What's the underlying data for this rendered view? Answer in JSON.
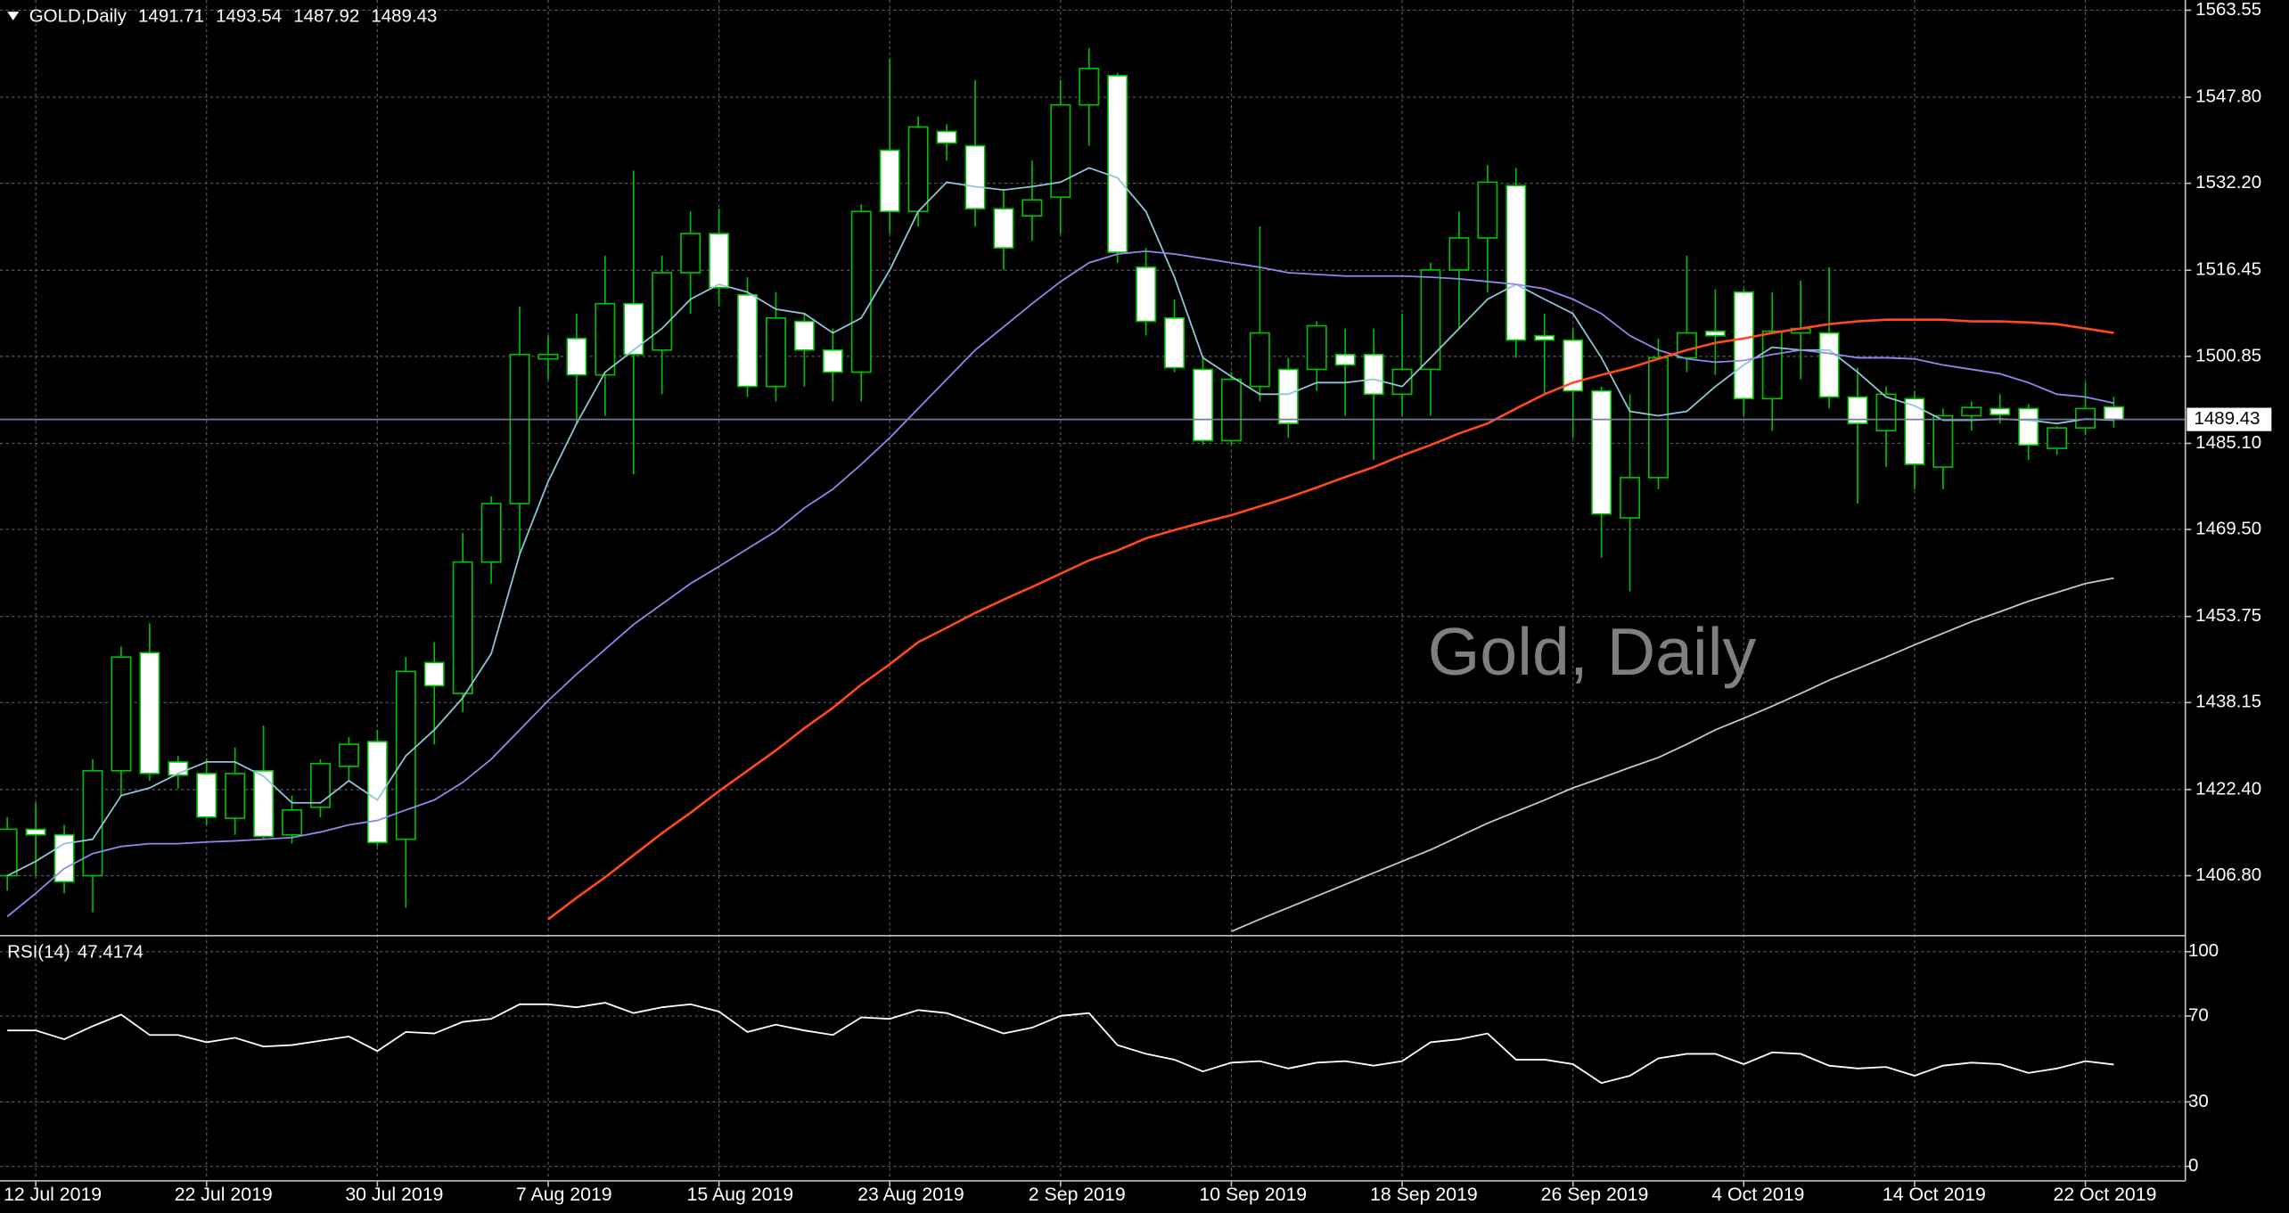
{
  "chart_data": {
    "type": "candlestick",
    "symbol": "GOLD,Daily",
    "watermark": "Gold, Daily",
    "categories": [
      null,
      "12 Jul 2019",
      null,
      null,
      null,
      null,
      null,
      "22 Jul 2019",
      null,
      null,
      null,
      null,
      null,
      "30 Jul 2019",
      null,
      null,
      null,
      null,
      null,
      "7 Aug 2019",
      null,
      null,
      null,
      null,
      null,
      "15 Aug 2019",
      null,
      null,
      null,
      null,
      null,
      "23 Aug 2019",
      null,
      null,
      null,
      null,
      null,
      "2 Sep 2019",
      null,
      null,
      null,
      null,
      null,
      "10 Sep 2019",
      null,
      null,
      null,
      null,
      null,
      "18 Sep 2019",
      null,
      null,
      null,
      null,
      null,
      "26 Sep 2019",
      null,
      null,
      null,
      null,
      null,
      "4 Oct 2019",
      null,
      null,
      null,
      null,
      null,
      "14 Oct 2019",
      null,
      null,
      null,
      null,
      null,
      "22 Oct 2019",
      null
    ],
    "open": [
      1406.8,
      1415.2,
      1414.2,
      1406.8,
      1425.8,
      1447.2,
      1427.4,
      1425.3,
      1417.2,
      1425.8,
      1414.2,
      1419.2,
      1426.6,
      1431.1,
      1413.4,
      1445.4,
      1439.8,
      1463.6,
      1474.2,
      1500.4,
      1504.1,
      1497.5,
      1510.4,
      1502.0,
      1516.0,
      1523.1,
      1512.0,
      1495.4,
      1507.2,
      1502.0,
      1498.0,
      1538.2,
      1527.1,
      1541.6,
      1539.0,
      1527.6,
      1526.3,
      1529.7,
      1546.4,
      1551.7,
      1517.0,
      1507.8,
      1498.5,
      1485.6,
      1495.4,
      1498.5,
      1498.5,
      1501.2,
      1501.2,
      1494.0,
      1498.5,
      1516.5,
      1522.3,
      1531.8,
      1504.6,
      1503.8,
      1494.6,
      1471.6,
      1478.9,
      1500.6,
      1505.4,
      1512.5,
      1493.2,
      1505.1,
      1505.1,
      1493.5,
      1487.4,
      1493.2,
      1480.8,
      1490.1,
      1491.4,
      1491.4,
      1484.2,
      1487.9,
      1491.71
    ],
    "high": [
      1417.4,
      1420.0,
      1416.0,
      1427.9,
      1448.3,
      1452.5,
      1428.5,
      1428.0,
      1430.0,
      1434.0,
      1421.3,
      1427.9,
      1431.9,
      1433.2,
      1446.4,
      1449.1,
      1468.9,
      1475.5,
      1509.9,
      1504.6,
      1508.6,
      1519.1,
      1534.5,
      1519.1,
      1527.1,
      1527.6,
      1515.2,
      1512.5,
      1508.6,
      1505.9,
      1528.4,
      1554.8,
      1544.3,
      1542.9,
      1550.9,
      1531.0,
      1536.3,
      1550.9,
      1556.7,
      1552.2,
      1520.5,
      1511.2,
      1500.6,
      1498.0,
      1524.4,
      1500.6,
      1507.2,
      1505.9,
      1505.9,
      1508.6,
      1517.8,
      1527.1,
      1535.5,
      1535.0,
      1508.6,
      1505.9,
      1495.4,
      1494.0,
      1504.1,
      1519.1,
      1513.0,
      1513.0,
      1512.5,
      1514.6,
      1517.0,
      1498.8,
      1495.4,
      1494.6,
      1491.4,
      1492.7,
      1494.0,
      1492.2,
      1488.2,
      1496.1,
      1493.54
    ],
    "low": [
      1404.1,
      1406.8,
      1403.6,
      1400.2,
      1421.3,
      1424.0,
      1422.6,
      1416.0,
      1414.2,
      1413.4,
      1412.6,
      1417.4,
      1424.0,
      1412.1,
      1401.0,
      1430.6,
      1436.4,
      1459.7,
      1464.9,
      1496.7,
      1488.7,
      1490.1,
      1479.5,
      1494.0,
      1508.6,
      1509.9,
      1493.5,
      1492.7,
      1495.4,
      1492.7,
      1492.7,
      1523.1,
      1524.4,
      1536.3,
      1524.4,
      1516.5,
      1521.8,
      1523.1,
      1539.0,
      1517.8,
      1504.6,
      1498.0,
      1484.8,
      1484.8,
      1492.7,
      1486.1,
      1494.6,
      1490.1,
      1482.1,
      1490.1,
      1490.1,
      1505.9,
      1512.5,
      1500.6,
      1494.0,
      1486.1,
      1464.4,
      1458.3,
      1476.8,
      1498.0,
      1497.5,
      1490.1,
      1487.4,
      1496.7,
      1491.4,
      1474.2,
      1480.8,
      1476.8,
      1476.8,
      1487.4,
      1488.7,
      1482.1,
      1483.0,
      1486.6,
      1487.92
    ],
    "close": [
      1415.2,
      1414.2,
      1405.7,
      1425.8,
      1446.4,
      1425.3,
      1425.0,
      1417.4,
      1425.3,
      1413.9,
      1418.7,
      1427.1,
      1430.6,
      1412.8,
      1443.8,
      1441.2,
      1463.6,
      1474.2,
      1501.2,
      1501.2,
      1497.5,
      1510.4,
      1501.2,
      1516.0,
      1523.1,
      1513.3,
      1495.4,
      1507.8,
      1502.0,
      1498.0,
      1527.1,
      1527.1,
      1542.4,
      1539.5,
      1527.6,
      1520.5,
      1529.2,
      1546.4,
      1553.0,
      1519.7,
      1507.2,
      1498.8,
      1485.6,
      1496.7,
      1505.1,
      1488.7,
      1506.4,
      1499.3,
      1494.0,
      1498.5,
      1516.5,
      1522.3,
      1532.4,
      1503.8,
      1503.8,
      1494.6,
      1472.3,
      1478.9,
      1500.6,
      1505.1,
      1504.6,
      1493.2,
      1505.4,
      1505.9,
      1493.5,
      1488.7,
      1494.0,
      1481.3,
      1490.1,
      1491.6,
      1490.3,
      1484.8,
      1487.9,
      1491.4,
      1489.43
    ],
    "up_color": "#000000",
    "down_color": "#ffffff",
    "wick_color": "#00c000",
    "price_line_color": "#6f7f9c",
    "overlays": [
      {
        "color": "#8fc4d8",
        "values": [
          1406.8,
          1409.4,
          1412.6,
          1413.4,
          1421.3,
          1422.7,
          1425.3,
          1427.4,
          1427.4,
          1424.8,
          1420.0,
          1420.0,
          1424.0,
          1420.5,
          1428.5,
          1433.2,
          1439.0,
          1447.0,
          1465.0,
          1478.2,
          1488.7,
          1498.0,
          1502.0,
          1505.9,
          1511.2,
          1513.9,
          1512.5,
          1509.4,
          1508.6,
          1505.1,
          1507.8,
          1516.5,
          1527.1,
          1532.4,
          1531.6,
          1531.0,
          1531.6,
          1532.4,
          1535.0,
          1533.2,
          1527.1,
          1515.2,
          1500.6,
          1497.2,
          1494.0,
          1494.0,
          1496.1,
          1496.1,
          1496.7,
          1495.4,
          1500.6,
          1505.9,
          1511.2,
          1513.9,
          1511.2,
          1508.6,
          1500.6,
          1490.9,
          1490.1,
          1490.9,
          1495.4,
          1499.3,
          1502.5,
          1502.0,
          1502.0,
          1498.0,
          1493.5,
          1491.9,
          1489.3,
          1489.3,
          1489.5,
          1489.3,
          1488.7,
          1489.5,
          1489.3
        ]
      },
      {
        "color": "#9585ee",
        "values": [
          1399.4,
          1403.6,
          1408.1,
          1410.8,
          1412.1,
          1412.6,
          1412.6,
          1412.9,
          1413.1,
          1413.4,
          1413.7,
          1414.7,
          1416.0,
          1416.8,
          1418.7,
          1420.5,
          1423.7,
          1427.9,
          1433.2,
          1438.5,
          1443.3,
          1447.8,
          1452.3,
          1456.0,
          1459.7,
          1462.8,
          1466.0,
          1469.2,
          1473.4,
          1476.8,
          1481.3,
          1486.1,
          1491.4,
          1496.7,
          1502.0,
          1506.2,
          1510.4,
          1514.4,
          1517.8,
          1519.4,
          1519.9,
          1519.4,
          1518.6,
          1517.8,
          1517.0,
          1516.0,
          1515.7,
          1515.4,
          1515.4,
          1515.4,
          1515.2,
          1514.9,
          1514.4,
          1513.9,
          1513.1,
          1511.2,
          1508.6,
          1504.6,
          1502.0,
          1500.4,
          1499.8,
          1500.1,
          1501.2,
          1502.0,
          1501.4,
          1500.6,
          1500.6,
          1500.4,
          1499.3,
          1498.5,
          1497.7,
          1496.1,
          1494.0,
          1493.5,
          1492.4
        ]
      },
      {
        "color": "#ff4a1a",
        "values": [
          null,
          null,
          null,
          null,
          null,
          null,
          null,
          null,
          null,
          null,
          null,
          null,
          null,
          null,
          null,
          null,
          null,
          null,
          null,
          1398.9,
          1402.8,
          1406.5,
          1410.5,
          1414.5,
          1418.2,
          1422.1,
          1425.8,
          1429.5,
          1433.5,
          1437.2,
          1441.4,
          1445.1,
          1449.1,
          1451.7,
          1454.4,
          1456.8,
          1459.1,
          1461.5,
          1463.9,
          1465.7,
          1467.9,
          1469.4,
          1470.8,
          1472.1,
          1473.7,
          1475.3,
          1477.1,
          1479.0,
          1480.8,
          1482.9,
          1484.8,
          1486.9,
          1488.7,
          1491.4,
          1494.0,
          1496.1,
          1497.5,
          1498.8,
          1500.4,
          1502.0,
          1503.3,
          1504.1,
          1505.1,
          1505.9,
          1506.7,
          1507.2,
          1507.5,
          1507.5,
          1507.5,
          1507.2,
          1507.2,
          1507.0,
          1506.7,
          1505.9,
          1505.1
        ]
      },
      {
        "color": "#c8c8c8",
        "values": [
          null,
          null,
          null,
          null,
          null,
          null,
          null,
          null,
          null,
          null,
          null,
          null,
          null,
          null,
          null,
          null,
          null,
          null,
          null,
          null,
          null,
          null,
          null,
          null,
          null,
          null,
          null,
          null,
          null,
          null,
          null,
          null,
          null,
          null,
          null,
          null,
          null,
          null,
          null,
          null,
          null,
          null,
          null,
          1396.7,
          1398.9,
          1401.0,
          1403.1,
          1405.2,
          1407.3,
          1409.4,
          1411.5,
          1413.9,
          1416.3,
          1418.4,
          1420.5,
          1422.7,
          1424.5,
          1426.4,
          1428.2,
          1430.6,
          1433.2,
          1435.3,
          1437.5,
          1439.8,
          1442.2,
          1444.3,
          1446.4,
          1448.6,
          1450.7,
          1452.8,
          1454.6,
          1456.5,
          1458.1,
          1459.7,
          1460.7
        ]
      }
    ],
    "ylim": [
      1396.2,
      1565.4
    ],
    "yticks": [
      {
        "value": 1406.8,
        "label": "1406.80"
      },
      {
        "value": 1422.4,
        "label": "1422.40"
      },
      1438.15,
      1453.75,
      {
        "value": 1469.5,
        "label": "1469.50"
      },
      {
        "value": 1485.1,
        "label": "1485.10"
      },
      1500.85,
      1516.45,
      {
        "value": 1532.2,
        "label": "1532.20"
      },
      {
        "value": 1547.8,
        "label": "1547.80"
      },
      1563.55
    ],
    "grid": true,
    "indicator": {
      "type": "line",
      "name": "RSI(14)",
      "color": "#ffffff",
      "values": [
        63.3,
        63.3,
        59.2,
        65.3,
        70.7,
        61.2,
        61.2,
        57.8,
        59.9,
        55.8,
        56.5,
        58.5,
        60.5,
        53.7,
        62.6,
        61.9,
        67.3,
        68.7,
        75.5,
        75.5,
        74.1,
        76.2,
        71.4,
        74.1,
        75.5,
        72.1,
        62.6,
        66.0,
        63.3,
        61.2,
        69.4,
        68.7,
        72.8,
        71.4,
        66.7,
        61.9,
        64.6,
        70.1,
        71.4,
        56.5,
        52.4,
        49.7,
        44.2,
        48.3,
        49.0,
        45.6,
        48.3,
        49.0,
        46.9,
        49.0,
        57.8,
        59.2,
        61.9,
        49.7,
        49.7,
        47.6,
        38.8,
        42.2,
        50.3,
        52.4,
        52.4,
        47.6,
        53.1,
        52.4,
        46.9,
        45.6,
        46.3,
        42.2,
        46.9,
        48.3,
        47.6,
        43.5,
        45.6,
        49.0,
        47.4174
      ],
      "ylim": [
        -6.1,
        106.1
      ],
      "yticks": [
        0,
        30,
        70,
        100
      ]
    }
  }
}
